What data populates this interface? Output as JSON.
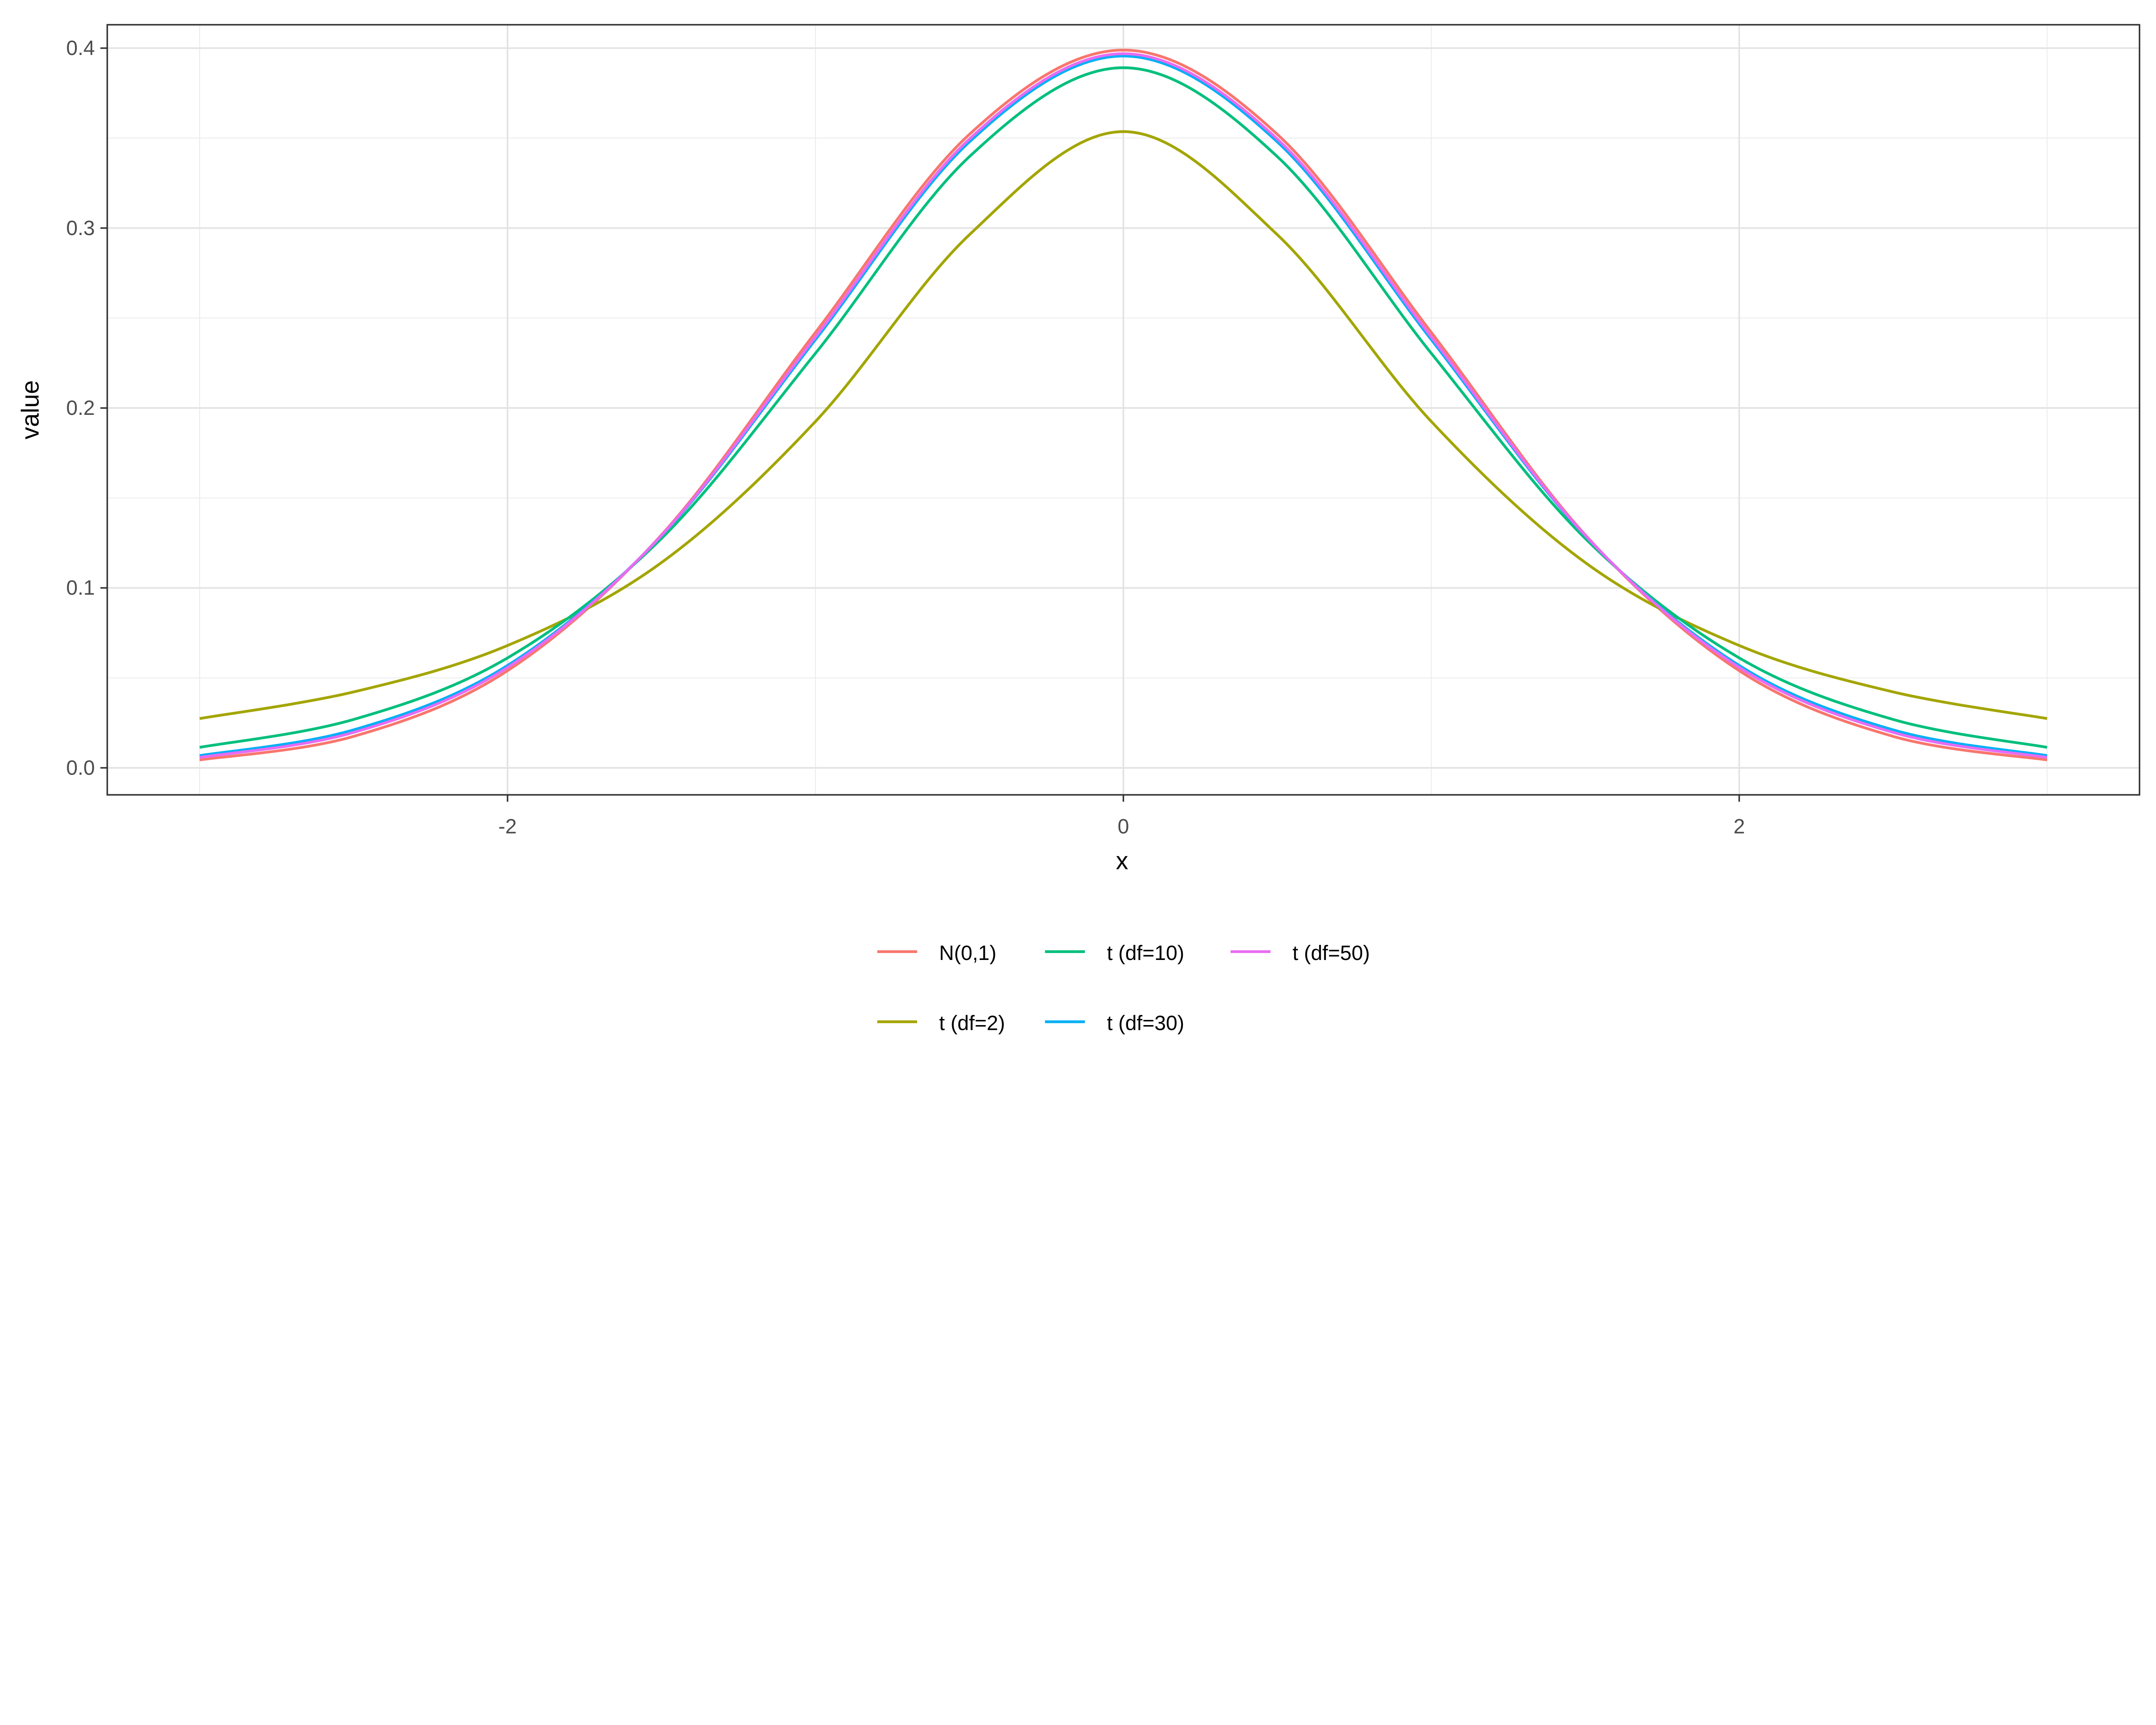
{
  "chart_data": {
    "type": "line",
    "title": "",
    "xlabel": "x",
    "ylabel": "value",
    "xlim": [
      -3.3,
      3.3
    ],
    "ylim": [
      -0.015,
      0.413
    ],
    "x_ticks": [
      -2,
      0,
      2
    ],
    "x_tick_labels": [
      "-2",
      "0",
      "2"
    ],
    "y_ticks": [
      0.0,
      0.1,
      0.2,
      0.3,
      0.4
    ],
    "y_tick_labels": [
      "0.0",
      "0.1",
      "0.2",
      "0.3",
      "0.4"
    ],
    "grid": true,
    "legend_position": "bottom",
    "x": [
      -3,
      -2.5,
      -2,
      -1.5,
      -1,
      -0.5,
      0,
      0.5,
      1,
      1.5,
      2,
      2.5,
      3
    ],
    "series": [
      {
        "name": "N(0,1)",
        "color": "#F8766D",
        "values": [
          0.0044,
          0.0175,
          0.054,
          0.1295,
          0.242,
          0.3521,
          0.3989,
          0.3521,
          0.242,
          0.1295,
          0.054,
          0.0175,
          0.0044
        ]
      },
      {
        "name": "t (df=2)",
        "color": "#A3A500",
        "values": [
          0.0274,
          0.0422,
          0.068,
          0.1141,
          0.1925,
          0.2963,
          0.3536,
          0.2963,
          0.1925,
          0.1141,
          0.068,
          0.0422,
          0.0274
        ]
      },
      {
        "name": "t (df=10)",
        "color": "#00BF7D",
        "values": [
          0.0114,
          0.0269,
          0.0611,
          0.1275,
          0.2304,
          0.3397,
          0.3891,
          0.3397,
          0.2304,
          0.1275,
          0.0611,
          0.0269,
          0.0114
        ]
      },
      {
        "name": "t (df=30)",
        "color": "#00B0F6",
        "values": [
          0.0068,
          0.0211,
          0.0569,
          0.129,
          0.238,
          0.3479,
          0.3956,
          0.3479,
          0.238,
          0.129,
          0.0569,
          0.0211,
          0.0068
        ]
      },
      {
        "name": "t (df=50)",
        "color": "#E76BF3",
        "values": [
          0.0058,
          0.0197,
          0.0558,
          0.1292,
          0.2395,
          0.3495,
          0.3969,
          0.3495,
          0.2395,
          0.1292,
          0.0558,
          0.0197,
          0.0058
        ]
      }
    ]
  }
}
